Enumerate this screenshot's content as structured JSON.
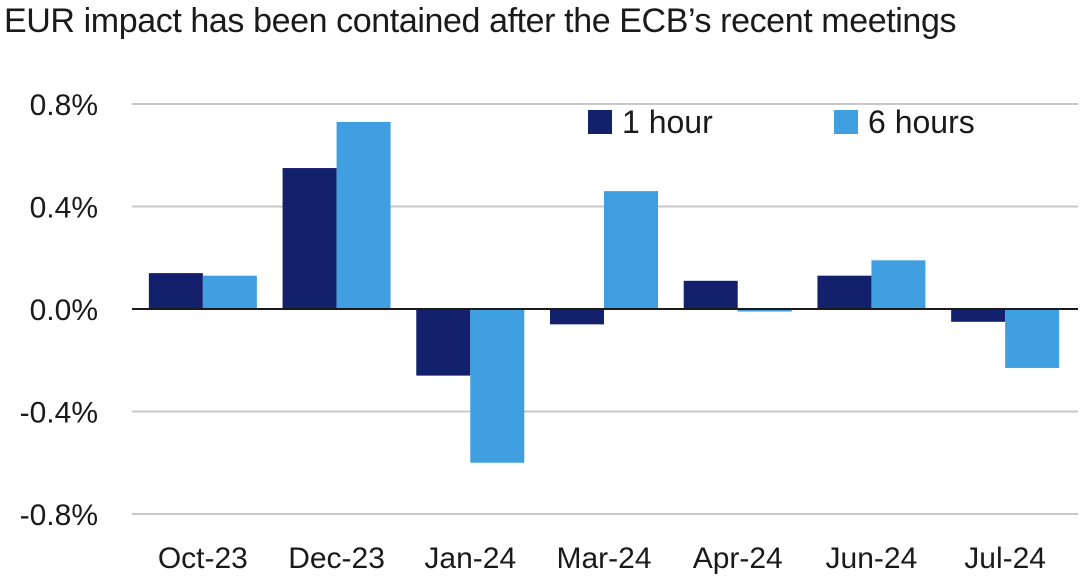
{
  "chart_data": {
    "type": "bar",
    "title": "EUR impact has been contained after the ECB’s recent meetings",
    "categories": [
      "Oct-23",
      "Dec-23",
      "Jan-24",
      "Mar-24",
      "Apr-24",
      "Jun-24",
      "Jul-24"
    ],
    "series": [
      {
        "name": "1 hour",
        "color": "#13206b",
        "values": [
          0.14,
          0.55,
          -0.26,
          -0.06,
          0.11,
          0.13,
          -0.05
        ]
      },
      {
        "name": "6 hours",
        "color": "#3f9fe0",
        "values": [
          0.13,
          0.73,
          -0.6,
          0.46,
          -0.01,
          0.19,
          -0.23
        ]
      }
    ],
    "ylim": [
      -0.8,
      0.8
    ],
    "yticks": [
      0.8,
      0.4,
      0.0,
      -0.4,
      -0.8
    ],
    "ytick_labels": [
      "0.8%",
      "0.4%",
      "0.0%",
      "-0.4%",
      "-0.8%"
    ],
    "grid": true,
    "legend_position": "top-right"
  }
}
